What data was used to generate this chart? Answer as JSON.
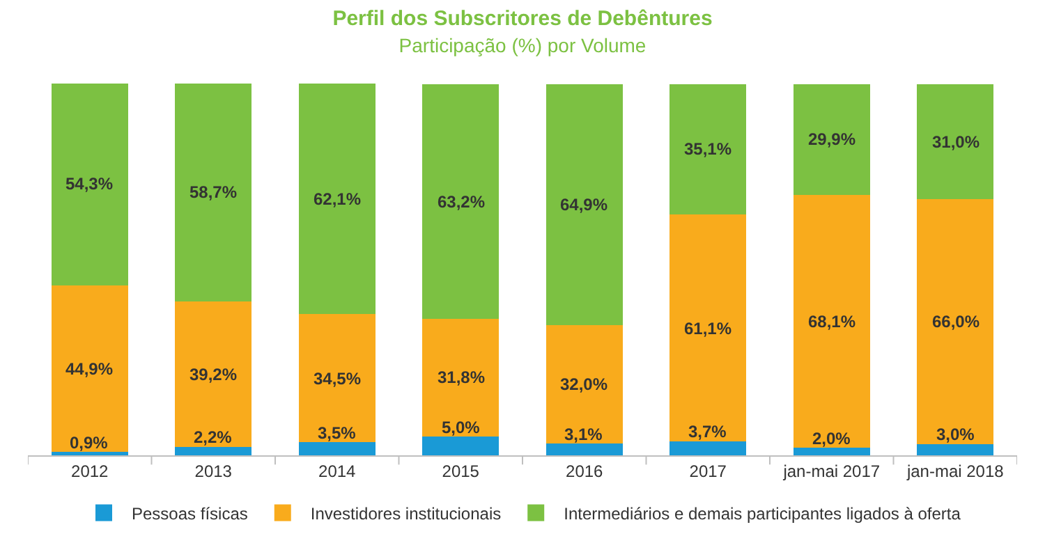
{
  "chart_data": {
    "type": "bar",
    "stacked": true,
    "title": "Perfil dos Subscritores de Debêntures",
    "subtitle": "Participação (%) por Volume",
    "categories": [
      "2012",
      "2013",
      "2014",
      "2015",
      "2016",
      "2017",
      "jan-mai 2017",
      "jan-mai 2018"
    ],
    "series": [
      {
        "name": "Pessoas físicas",
        "color": "#1a9ad6",
        "values": [
          0.9,
          2.2,
          3.5,
          5.0,
          3.1,
          3.7,
          2.0,
          3.0
        ],
        "value_labels": [
          "0,9%",
          "2,2%",
          "3,5%",
          "5,0%",
          "3,1%",
          "3,7%",
          "2,0%",
          "3,0%"
        ]
      },
      {
        "name": "Investidores institucionais",
        "color": "#f9ab1c",
        "values": [
          44.9,
          39.2,
          34.5,
          31.8,
          32.0,
          61.1,
          68.1,
          66.0
        ],
        "value_labels": [
          "44,9%",
          "39,2%",
          "34,5%",
          "31,8%",
          "32,0%",
          "61,1%",
          "68,1%",
          "66,0%"
        ]
      },
      {
        "name": "Intermediários e demais participantes ligados à oferta",
        "color": "#7cc142",
        "values": [
          54.3,
          58.7,
          62.1,
          63.2,
          64.9,
          35.1,
          29.9,
          31.0
        ],
        "value_labels": [
          "54,3%",
          "58,7%",
          "62,1%",
          "63,2%",
          "64,9%",
          "35,1%",
          "29,9%",
          "31,0%"
        ]
      }
    ],
    "legend": "bottom"
  }
}
